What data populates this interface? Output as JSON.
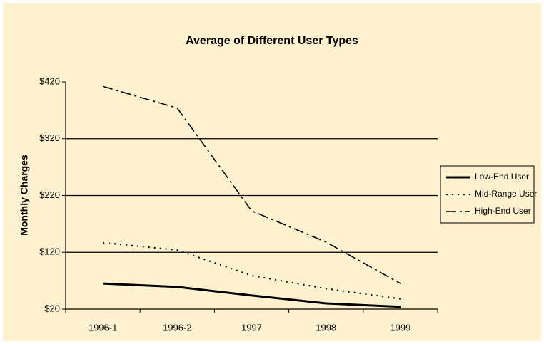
{
  "chart_data": {
    "type": "line",
    "title": "Average of Different User Types",
    "y_label": "Monthly Charges",
    "categories": [
      "1996-1",
      "1996-2",
      "1997",
      "1998",
      "1999"
    ],
    "series": [
      {
        "name": "Low-End User",
        "color": "#000000",
        "dash": "solid",
        "values": [
          65,
          59,
          44,
          30,
          24
        ]
      },
      {
        "name": "Mid-Range User",
        "color": "#000000",
        "dash": "dotted",
        "values": [
          137,
          124,
          79,
          56,
          38
        ]
      },
      {
        "name": "High-End User",
        "color": "#000000",
        "dash": "dash-dot",
        "values": [
          412,
          374,
          193,
          138,
          65
        ]
      }
    ],
    "ylim": [
      20,
      420
    ],
    "yticks": [
      {
        "value": 20,
        "label": "$20"
      },
      {
        "value": 120,
        "label": "$120"
      },
      {
        "value": 220,
        "label": "$220"
      },
      {
        "value": 320,
        "label": "$320"
      },
      {
        "value": 420,
        "label": "$420"
      }
    ],
    "grid": true,
    "legend": "right"
  }
}
